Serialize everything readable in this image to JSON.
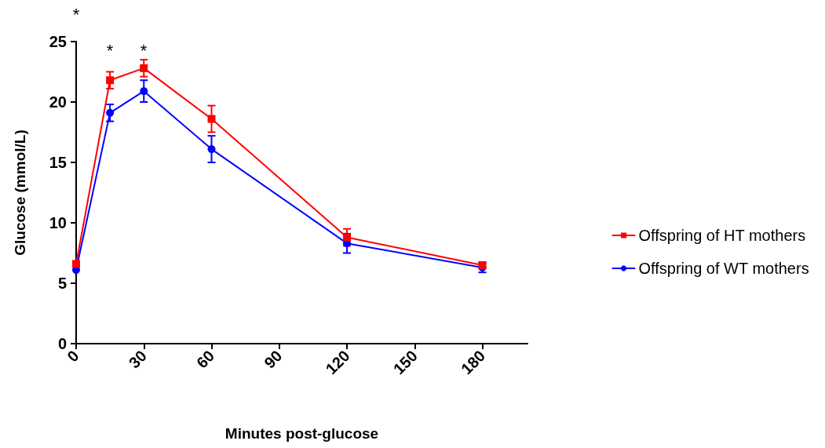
{
  "chart_data": {
    "type": "line",
    "xlabel": "Minutes post-glucose",
    "ylabel": "Glucose (mmol/L)",
    "x": [
      0,
      15,
      30,
      60,
      120,
      180
    ],
    "series": [
      {
        "name": "Offspring of HT mothers",
        "color": "#ff0000",
        "marker": "square",
        "values": [
          6.6,
          21.8,
          22.8,
          18.6,
          8.8,
          6.5
        ],
        "errors": [
          null,
          0.7,
          0.7,
          1.1,
          0.7,
          0.2
        ]
      },
      {
        "name": "Offspring of WT mothers",
        "color": "#0000ff",
        "marker": "circle",
        "values": [
          6.1,
          19.1,
          20.9,
          16.1,
          8.3,
          6.3
        ],
        "errors": [
          null,
          0.7,
          0.9,
          1.1,
          0.8,
          0.4
        ]
      }
    ],
    "xlim": [
      0,
      200
    ],
    "xticks": [
      0,
      30,
      60,
      90,
      120,
      150,
      180
    ],
    "ylim": [
      0,
      25
    ],
    "yticks": [
      0,
      5,
      10,
      15,
      20,
      25
    ],
    "grid": false,
    "legend": "right",
    "line_style": "solid",
    "annotations": [
      "*",
      "*",
      "*"
    ]
  }
}
